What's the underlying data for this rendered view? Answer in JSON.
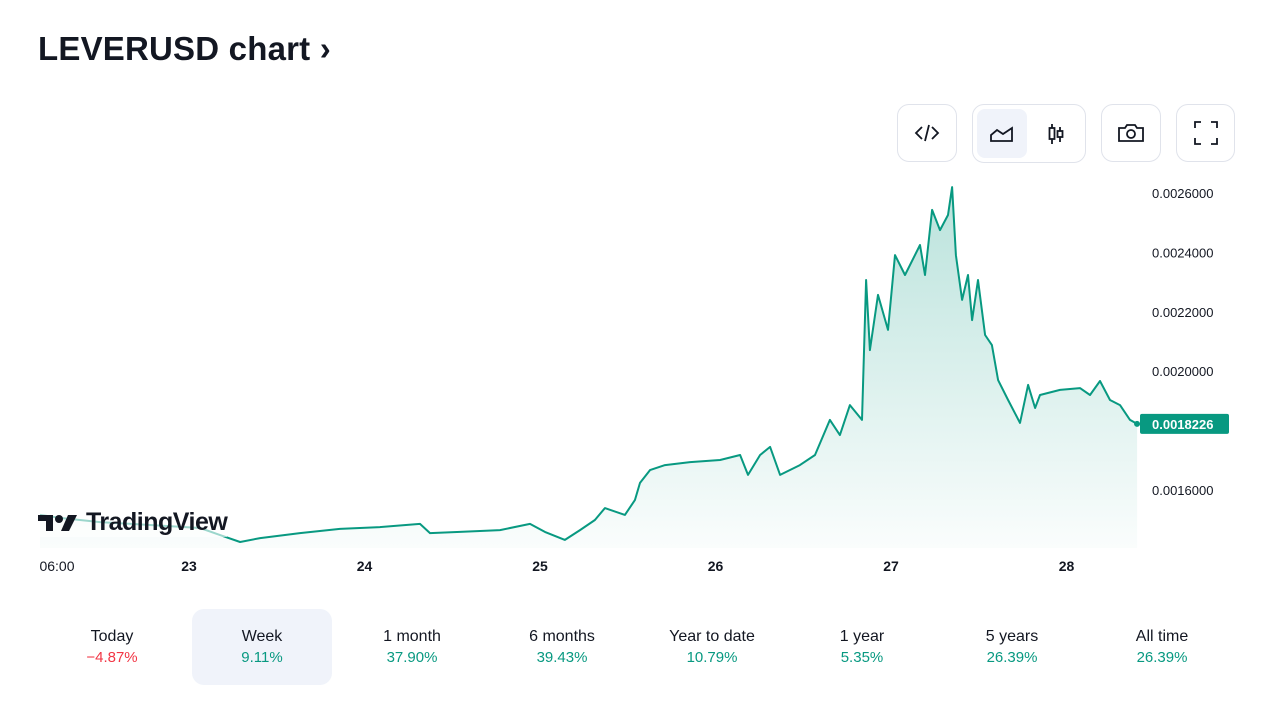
{
  "title": "LEVERUSD chart",
  "title_chevron": "›",
  "toolbar": {
    "embed": "embed-code",
    "line": "line-chart",
    "candles": "candlestick-chart",
    "snapshot": "camera",
    "fullscreen": "fullscreen"
  },
  "logo_text": "TradingView",
  "colors": {
    "line": "#089981",
    "negative": "#f23645",
    "highlight": "#f0f3fa"
  },
  "chart_data": {
    "type": "area",
    "title": "LEVERUSD",
    "x_unit": "day of month",
    "xlim": [
      22.15,
      28.45
    ],
    "ylim": [
      0.00142,
      0.00265
    ],
    "x_ticks": [
      {
        "v": 22.25,
        "label": "06:00"
      },
      {
        "v": 23,
        "label": "23"
      },
      {
        "v": 24,
        "label": "24"
      },
      {
        "v": 25,
        "label": "25"
      },
      {
        "v": 26,
        "label": "26"
      },
      {
        "v": 27,
        "label": "27"
      },
      {
        "v": 28,
        "label": "28"
      }
    ],
    "y_ticks": [
      {
        "v": 0.0026,
        "label": "0.0026000"
      },
      {
        "v": 0.0024,
        "label": "0.0024000"
      },
      {
        "v": 0.0022,
        "label": "0.0022000"
      },
      {
        "v": 0.002,
        "label": "0.0020000"
      },
      {
        "v": 0.0016,
        "label": "0.0016000"
      }
    ],
    "last_price": {
      "v": 0.0018226,
      "label": "0.0018226"
    },
    "points": [
      [
        22.151,
        0.001516
      ],
      [
        22.265,
        0.001506
      ],
      [
        22.493,
        0.001492
      ],
      [
        22.778,
        0.001482
      ],
      [
        23.063,
        0.001472
      ],
      [
        23.177,
        0.001448
      ],
      [
        23.291,
        0.001425
      ],
      [
        23.405,
        0.001438
      ],
      [
        23.632,
        0.001455
      ],
      [
        23.86,
        0.001469
      ],
      [
        24.088,
        0.001475
      ],
      [
        24.316,
        0.001486
      ],
      [
        24.373,
        0.001455
      ],
      [
        24.544,
        0.001459
      ],
      [
        24.772,
        0.001465
      ],
      [
        24.943,
        0.001486
      ],
      [
        25.028,
        0.001459
      ],
      [
        25.142,
        0.001432
      ],
      [
        25.228,
        0.001465
      ],
      [
        25.313,
        0.001499
      ],
      [
        25.37,
        0.001539
      ],
      [
        25.484,
        0.001516
      ],
      [
        25.541,
        0.001566
      ],
      [
        25.57,
        0.001624
      ],
      [
        25.627,
        0.001667
      ],
      [
        25.712,
        0.001684
      ],
      [
        25.855,
        0.001694
      ],
      [
        26.026,
        0.001701
      ],
      [
        26.14,
        0.001718
      ],
      [
        26.185,
        0.001651
      ],
      [
        26.254,
        0.001718
      ],
      [
        26.311,
        0.001745
      ],
      [
        26.368,
        0.001651
      ],
      [
        26.481,
        0.001684
      ],
      [
        26.567,
        0.001718
      ],
      [
        26.652,
        0.001836
      ],
      [
        26.709,
        0.001785
      ],
      [
        26.766,
        0.001886
      ],
      [
        26.835,
        0.001836
      ],
      [
        26.858,
        0.002307
      ],
      [
        26.88,
        0.002071
      ],
      [
        26.926,
        0.002257
      ],
      [
        26.983,
        0.002139
      ],
      [
        27.023,
        0.002391
      ],
      [
        27.08,
        0.002324
      ],
      [
        27.165,
        0.002425
      ],
      [
        27.194,
        0.002324
      ],
      [
        27.234,
        0.002543
      ],
      [
        27.279,
        0.002475
      ],
      [
        27.325,
        0.002526
      ],
      [
        27.348,
        0.00262
      ],
      [
        27.37,
        0.002391
      ],
      [
        27.405,
        0.00224
      ],
      [
        27.439,
        0.002324
      ],
      [
        27.462,
        0.002172
      ],
      [
        27.496,
        0.002307
      ],
      [
        27.536,
        0.002122
      ],
      [
        27.575,
        0.002088
      ],
      [
        27.61,
        0.00197
      ],
      [
        27.667,
        0.001903
      ],
      [
        27.735,
        0.001826
      ],
      [
        27.781,
        0.001954
      ],
      [
        27.821,
        0.001876
      ],
      [
        27.849,
        0.00192
      ],
      [
        27.963,
        0.001937
      ],
      [
        28.077,
        0.001943
      ],
      [
        28.134,
        0.00192
      ],
      [
        28.191,
        0.001967
      ],
      [
        28.248,
        0.001903
      ],
      [
        28.305,
        0.001886
      ],
      [
        28.362,
        0.001836
      ],
      [
        28.402,
        0.0018226
      ]
    ]
  },
  "periods": [
    {
      "label": "Today",
      "value": "−4.87%",
      "sign": "neg"
    },
    {
      "label": "Week",
      "value": "9.11%",
      "sign": "pos",
      "active": true
    },
    {
      "label": "1 month",
      "value": "37.90%",
      "sign": "pos"
    },
    {
      "label": "6 months",
      "value": "39.43%",
      "sign": "pos"
    },
    {
      "label": "Year to date",
      "value": "10.79%",
      "sign": "pos"
    },
    {
      "label": "1 year",
      "value": "5.35%",
      "sign": "pos"
    },
    {
      "label": "5 years",
      "value": "26.39%",
      "sign": "pos"
    },
    {
      "label": "All time",
      "value": "26.39%",
      "sign": "pos"
    }
  ]
}
